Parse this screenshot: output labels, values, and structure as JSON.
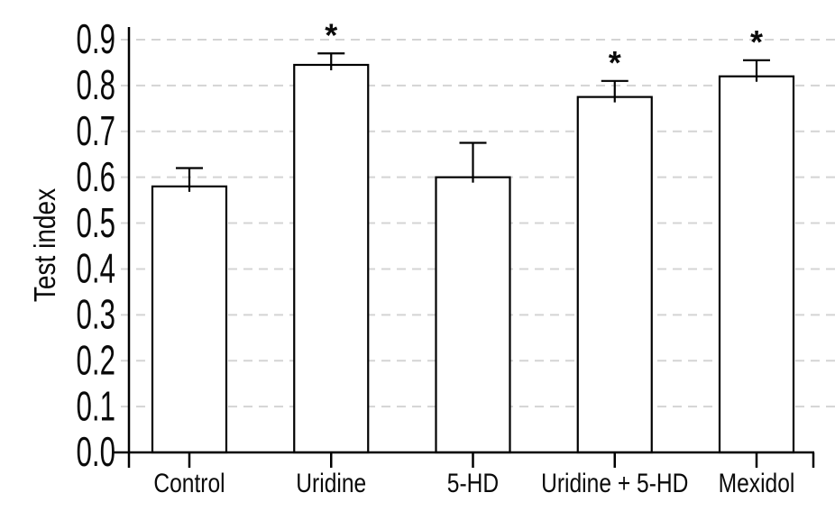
{
  "chart_data": {
    "type": "bar",
    "title": "",
    "xlabel": "",
    "ylabel": "Test index",
    "categories": [
      "Control",
      "Uridine",
      "5-HD",
      "Uridine + 5-HD",
      "Mexidol"
    ],
    "values": [
      0.58,
      0.845,
      0.6,
      0.775,
      0.82
    ],
    "errors_upper": [
      0.04,
      0.025,
      0.075,
      0.035,
      0.035
    ],
    "significance": [
      "",
      "*",
      "",
      "*",
      "*"
    ],
    "yticks": [
      0.0,
      0.1,
      0.2,
      0.3,
      0.4,
      0.5,
      0.6,
      0.7,
      0.8,
      0.9
    ],
    "ylim": [
      0.0,
      0.9
    ],
    "grid": "horizontal-dashed",
    "legend": null,
    "colors": {
      "bar_fill": "#ffffff",
      "bar_stroke": "#000000",
      "axis": "#000000",
      "gridline": "#d4d4d4",
      "text": "#0a0a0a"
    }
  }
}
